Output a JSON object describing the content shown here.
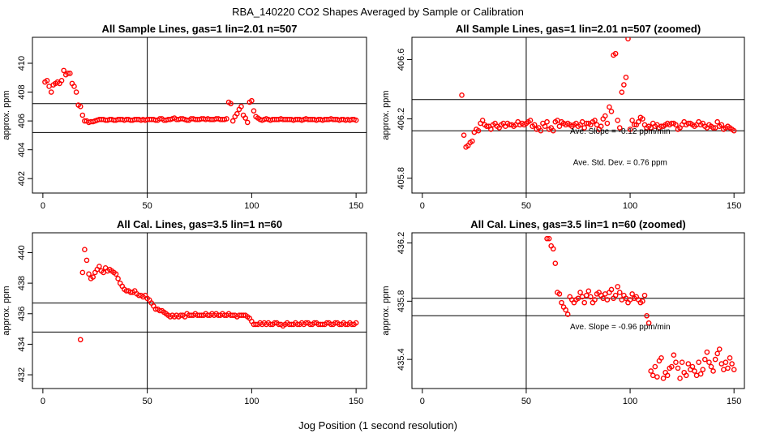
{
  "figure": {
    "title": "RBA_140220  CO2 Shapes Averaged by Sample or Calibration",
    "xlabel": "Jog Position (1 second resolution)"
  },
  "chart_data": [
    {
      "type": "scatter",
      "title": "All Sample Lines, gas=1 lin=2.01 n=507",
      "xlabel": "",
      "ylabel": "approx. ppm",
      "xlim": [
        -5,
        155
      ],
      "ylim": [
        401,
        411.8
      ],
      "xticks": [
        0,
        50,
        100,
        150
      ],
      "yticks": [
        402,
        404,
        406,
        408,
        410
      ],
      "vline": 50,
      "hlines": [
        405.2,
        407.2
      ],
      "marker_color": "#ff0000",
      "annotations": [],
      "x": [
        1,
        2,
        3,
        4,
        5,
        6,
        7,
        8,
        9,
        10,
        11,
        12,
        13,
        14,
        15,
        16,
        17,
        18,
        19,
        20,
        21,
        22,
        23,
        24,
        25,
        26,
        27,
        28,
        29,
        30,
        31,
        32,
        33,
        34,
        35,
        36,
        37,
        38,
        39,
        40,
        41,
        42,
        43,
        44,
        45,
        46,
        47,
        48,
        49,
        50,
        51,
        52,
        53,
        54,
        55,
        56,
        57,
        58,
        59,
        60,
        61,
        62,
        63,
        64,
        65,
        66,
        67,
        68,
        69,
        70,
        71,
        72,
        73,
        74,
        75,
        76,
        77,
        78,
        79,
        80,
        81,
        82,
        83,
        84,
        85,
        86,
        87,
        88,
        89,
        90,
        91,
        92,
        93,
        94,
        95,
        96,
        97,
        98,
        99,
        100,
        101,
        102,
        103,
        104,
        105,
        106,
        107,
        108,
        109,
        110,
        111,
        112,
        113,
        114,
        115,
        116,
        117,
        118,
        119,
        120,
        121,
        122,
        123,
        124,
        125,
        126,
        127,
        128,
        129,
        130,
        131,
        132,
        133,
        134,
        135,
        136,
        137,
        138,
        139,
        140,
        141,
        142,
        143,
        144,
        145,
        146,
        147,
        148,
        149,
        150
      ],
      "y": [
        408.7,
        408.8,
        408.4,
        408.0,
        408.5,
        408.6,
        408.7,
        408.6,
        408.8,
        409.5,
        409.2,
        409.3,
        409.3,
        408.6,
        408.4,
        408.0,
        407.1,
        407.0,
        406.4,
        406.0,
        406.0,
        405.9,
        405.95,
        405.95,
        406.0,
        406.05,
        406.1,
        406.1,
        406.1,
        406.05,
        406.05,
        406.1,
        406.1,
        406.05,
        406.05,
        406.1,
        406.1,
        406.1,
        406.05,
        406.1,
        406.1,
        406.05,
        406.05,
        406.1,
        406.1,
        406.1,
        406.05,
        406.1,
        406.05,
        406.1,
        406.1,
        406.1,
        406.1,
        406.05,
        406.05,
        406.15,
        406.15,
        406.05,
        406.05,
        406.1,
        406.1,
        406.15,
        406.2,
        406.1,
        406.1,
        406.15,
        406.15,
        406.1,
        406.05,
        406.05,
        406.15,
        406.15,
        406.1,
        406.1,
        406.1,
        406.15,
        406.15,
        406.1,
        406.15,
        406.1,
        406.1,
        406.1,
        406.15,
        406.15,
        406.1,
        406.1,
        406.1,
        406.15,
        407.3,
        407.2,
        406.0,
        406.3,
        406.5,
        406.8,
        407.0,
        406.4,
        406.2,
        405.9,
        407.3,
        407.4,
        406.7,
        406.3,
        406.2,
        406.1,
        406.05,
        406.1,
        406.15,
        406.1,
        406.05,
        406.1,
        406.1,
        406.1,
        406.1,
        406.15,
        406.1,
        406.1,
        406.1,
        406.1,
        406.1,
        406.05,
        406.1,
        406.1,
        406.1,
        406.05,
        406.1,
        406.15,
        406.1,
        406.1,
        406.1,
        406.1,
        406.05,
        406.1,
        406.1,
        406.05,
        406.1,
        406.1,
        406.1,
        406.15,
        406.1,
        406.1,
        406.1,
        406.05,
        406.1,
        406.1,
        406.05,
        406.1,
        406.05,
        406.1,
        406.1,
        406.05
      ]
    },
    {
      "type": "scatter",
      "title": "All Sample Lines, gas=1 lin=2.01 n=507 (zoomed)",
      "xlabel": "",
      "ylabel": "approx. ppm",
      "xlim": [
        -5,
        155
      ],
      "ylim": [
        405.7,
        406.75
      ],
      "xticks": [
        0,
        50,
        100,
        150
      ],
      "yticks": [
        405.8,
        406.2,
        406.6
      ],
      "vline": 50,
      "hlines": [
        406.12,
        406.33
      ],
      "marker_color": "#ff0000",
      "annotations": [
        "Ave. Slope =  -0.12  ppm/min",
        "Ave. Std. Dev. =  0.76  ppm"
      ],
      "x": [
        19,
        20,
        21,
        22,
        23,
        24,
        25,
        26,
        27,
        28,
        29,
        30,
        31,
        32,
        33,
        34,
        35,
        36,
        37,
        38,
        39,
        40,
        41,
        42,
        43,
        44,
        45,
        46,
        47,
        48,
        49,
        50,
        51,
        52,
        53,
        54,
        55,
        56,
        57,
        58,
        59,
        60,
        61,
        62,
        63,
        64,
        65,
        66,
        67,
        68,
        69,
        70,
        71,
        72,
        73,
        74,
        75,
        76,
        77,
        78,
        79,
        80,
        81,
        82,
        83,
        84,
        85,
        86,
        87,
        88,
        89,
        90,
        91,
        92,
        93,
        94,
        95,
        96,
        97,
        98,
        99,
        100,
        101,
        102,
        103,
        104,
        105,
        106,
        107,
        108,
        109,
        110,
        111,
        112,
        113,
        114,
        115,
        116,
        117,
        118,
        119,
        120,
        121,
        122,
        123,
        124,
        125,
        126,
        127,
        128,
        129,
        130,
        131,
        132,
        133,
        134,
        135,
        136,
        137,
        138,
        139,
        140,
        141,
        142,
        143,
        144,
        145,
        146,
        147,
        148,
        149,
        150
      ],
      "y": [
        406.36,
        406.09,
        406.01,
        406.02,
        406.04,
        406.05,
        406.11,
        406.13,
        406.12,
        406.17,
        406.19,
        406.16,
        406.15,
        406.15,
        406.13,
        406.16,
        406.17,
        406.15,
        406.14,
        406.16,
        406.17,
        406.15,
        406.17,
        406.16,
        406.16,
        406.15,
        406.16,
        406.18,
        406.16,
        406.17,
        406.16,
        406.17,
        406.18,
        406.19,
        406.15,
        406.16,
        406.13,
        406.14,
        406.12,
        406.17,
        406.15,
        406.18,
        406.13,
        406.14,
        406.12,
        406.18,
        406.19,
        406.15,
        406.18,
        406.17,
        406.16,
        406.17,
        406.16,
        406.15,
        406.16,
        406.17,
        406.15,
        406.16,
        406.18,
        406.14,
        406.17,
        406.17,
        406.16,
        406.18,
        406.19,
        406.16,
        406.13,
        406.15,
        406.2,
        406.22,
        406.17,
        406.28,
        406.25,
        406.63,
        406.64,
        406.19,
        406.14,
        406.38,
        406.43,
        406.48,
        406.74,
        406.13,
        406.19,
        406.16,
        406.16,
        406.18,
        406.21,
        406.2,
        406.16,
        406.14,
        406.15,
        406.14,
        406.17,
        406.15,
        406.16,
        406.14,
        406.15,
        406.15,
        406.16,
        406.17,
        406.16,
        406.17,
        406.17,
        406.16,
        406.13,
        406.14,
        406.16,
        406.18,
        406.16,
        406.17,
        406.17,
        406.16,
        406.15,
        406.16,
        406.18,
        406.16,
        406.17,
        406.15,
        406.14,
        406.16,
        406.15,
        406.14,
        406.14,
        406.18,
        406.15,
        406.16,
        406.13,
        406.14,
        406.15,
        406.14,
        406.13,
        406.12
      ]
    },
    {
      "type": "scatter",
      "title": "All Cal. Lines, gas=3.5 lin=1 n=60",
      "xlabel": "",
      "ylabel": "approx. ppm",
      "xlim": [
        -5,
        155
      ],
      "ylim": [
        431.1,
        441.3
      ],
      "xticks": [
        0,
        50,
        100,
        150
      ],
      "yticks": [
        432,
        434,
        436,
        438,
        440
      ],
      "vline": 50,
      "hlines": [
        434.8,
        436.7
      ],
      "marker_color": "#ff0000",
      "annotations": [],
      "x": [
        18,
        19,
        20,
        21,
        22,
        23,
        24,
        25,
        26,
        27,
        28,
        29,
        30,
        31,
        32,
        33,
        34,
        35,
        36,
        37,
        38,
        39,
        40,
        41,
        42,
        43,
        44,
        45,
        46,
        47,
        48,
        49,
        50,
        51,
        52,
        53,
        54,
        55,
        56,
        57,
        58,
        59,
        60,
        61,
        62,
        63,
        64,
        65,
        66,
        67,
        68,
        69,
        70,
        71,
        72,
        73,
        74,
        75,
        76,
        77,
        78,
        79,
        80,
        81,
        82,
        83,
        84,
        85,
        86,
        87,
        88,
        89,
        90,
        91,
        92,
        93,
        94,
        95,
        96,
        97,
        98,
        99,
        100,
        101,
        102,
        103,
        104,
        105,
        106,
        107,
        108,
        109,
        110,
        111,
        112,
        113,
        114,
        115,
        116,
        117,
        118,
        119,
        120,
        121,
        122,
        123,
        124,
        125,
        126,
        127,
        128,
        129,
        130,
        131,
        132,
        133,
        134,
        135,
        136,
        137,
        138,
        139,
        140,
        141,
        142,
        143,
        144,
        145,
        146,
        147,
        148,
        149,
        150
      ],
      "y": [
        434.3,
        438.7,
        440.2,
        439.5,
        438.6,
        438.3,
        438.4,
        438.7,
        438.9,
        439.1,
        438.8,
        438.7,
        439.0,
        438.8,
        438.9,
        438.8,
        438.7,
        438.6,
        438.3,
        438.0,
        437.8,
        437.6,
        437.5,
        437.5,
        437.4,
        437.4,
        437.5,
        437.3,
        437.2,
        437.2,
        437.1,
        437.2,
        437.0,
        436.9,
        436.7,
        436.5,
        436.3,
        436.3,
        436.2,
        436.2,
        436.1,
        436.0,
        435.9,
        435.8,
        435.9,
        435.8,
        435.9,
        435.8,
        435.9,
        435.9,
        435.8,
        436.0,
        435.9,
        435.9,
        435.9,
        436.0,
        435.9,
        435.9,
        435.9,
        435.9,
        436.0,
        435.9,
        435.9,
        436.0,
        435.9,
        436.0,
        435.9,
        435.9,
        436.0,
        435.9,
        435.9,
        436.0,
        435.9,
        435.9,
        435.9,
        435.8,
        435.9,
        435.9,
        435.9,
        435.9,
        435.8,
        435.7,
        435.5,
        435.3,
        435.3,
        435.3,
        435.4,
        435.3,
        435.4,
        435.3,
        435.4,
        435.3,
        435.3,
        435.4,
        435.4,
        435.3,
        435.3,
        435.2,
        435.3,
        435.4,
        435.3,
        435.3,
        435.3,
        435.4,
        435.3,
        435.3,
        435.4,
        435.3,
        435.4,
        435.4,
        435.3,
        435.3,
        435.4,
        435.4,
        435.3,
        435.3,
        435.3,
        435.3,
        435.4,
        435.4,
        435.3,
        435.3,
        435.4,
        435.4,
        435.3,
        435.3,
        435.4,
        435.3,
        435.3,
        435.4,
        435.3,
        435.3,
        435.4
      ]
    },
    {
      "type": "scatter",
      "title": "All Cal. Lines, gas=3.5 lin=1 n=60 (zoomed)",
      "xlabel": "",
      "ylabel": "approx. ppm",
      "xlim": [
        -5,
        155
      ],
      "ylim": [
        435.2,
        436.27
      ],
      "xticks": [
        0,
        50,
        100,
        150
      ],
      "yticks": [
        435.4,
        435.8,
        436.2
      ],
      "vline": 50,
      "hlines": [
        435.7,
        435.82
      ],
      "marker_color": "#ff0000",
      "annotations": [
        "Ave. Slope =  -0.96  ppm/min"
      ],
      "x": [
        60,
        61,
        62,
        63,
        64,
        65,
        66,
        67,
        68,
        69,
        70,
        71,
        72,
        73,
        74,
        75,
        76,
        77,
        78,
        79,
        80,
        81,
        82,
        83,
        84,
        85,
        86,
        87,
        88,
        89,
        90,
        91,
        92,
        93,
        94,
        95,
        96,
        97,
        98,
        99,
        100,
        101,
        102,
        103,
        104,
        105,
        106,
        107,
        108,
        109,
        110,
        111,
        112,
        113,
        114,
        115,
        116,
        117,
        118,
        119,
        120,
        121,
        122,
        123,
        124,
        125,
        126,
        127,
        128,
        129,
        130,
        131,
        132,
        133,
        134,
        135,
        136,
        137,
        138,
        139,
        140,
        141,
        142,
        143,
        144,
        145,
        146,
        147,
        148,
        149,
        150
      ],
      "y": [
        436.23,
        436.23,
        436.18,
        436.16,
        436.06,
        435.86,
        435.85,
        435.79,
        435.76,
        435.74,
        435.71,
        435.83,
        435.81,
        435.79,
        435.81,
        435.82,
        435.86,
        435.83,
        435.79,
        435.84,
        435.87,
        435.83,
        435.79,
        435.81,
        435.85,
        435.86,
        435.84,
        435.82,
        435.85,
        435.81,
        435.86,
        435.88,
        435.82,
        435.84,
        435.9,
        435.86,
        435.81,
        435.84,
        435.82,
        435.79,
        435.81,
        435.85,
        435.82,
        435.83,
        435.81,
        435.79,
        435.8,
        435.84,
        435.7,
        435.65,
        435.32,
        435.29,
        435.35,
        435.28,
        435.39,
        435.41,
        435.27,
        435.31,
        435.29,
        435.34,
        435.35,
        435.43,
        435.38,
        435.34,
        435.27,
        435.38,
        435.31,
        435.29,
        435.37,
        435.33,
        435.35,
        435.32,
        435.29,
        435.38,
        435.3,
        435.33,
        435.4,
        435.45,
        435.38,
        435.35,
        435.32,
        435.4,
        435.44,
        435.47,
        435.37,
        435.33,
        435.38,
        435.34,
        435.41,
        435.37,
        435.33
      ]
    }
  ]
}
